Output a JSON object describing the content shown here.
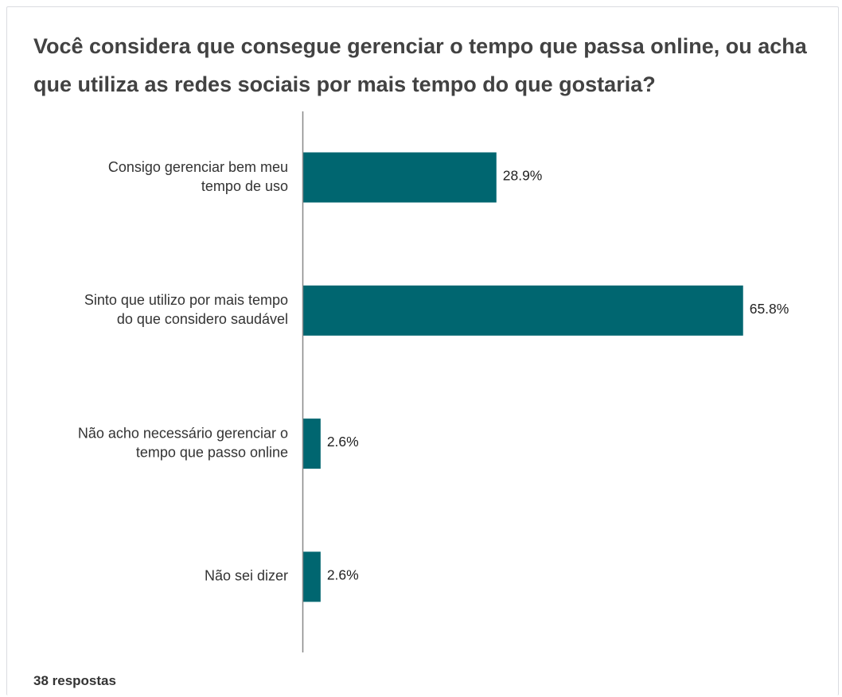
{
  "chart_data": {
    "type": "bar",
    "orientation": "horizontal",
    "title": "Você considera que consegue gerenciar o tempo que passa online, ou acha que utiliza as redes sociais por mais tempo do que gostaria?",
    "categories": [
      [
        "Consigo gerenciar bem meu",
        "tempo de uso"
      ],
      [
        "Sinto que utilizo por mais tempo",
        "do que considero saudável"
      ],
      [
        "Não acho necessário gerenciar o",
        "tempo que passo online"
      ],
      [
        "Não sei dizer"
      ]
    ],
    "values": [
      28.9,
      65.8,
      2.6,
      2.6
    ],
    "value_labels": [
      "28.9%",
      "65.8%",
      "2.6%",
      "2.6%"
    ],
    "unit": "%",
    "bar_color": "#006670",
    "grid": false,
    "legend": "none"
  },
  "footer": {
    "responses": "38 respostas"
  }
}
